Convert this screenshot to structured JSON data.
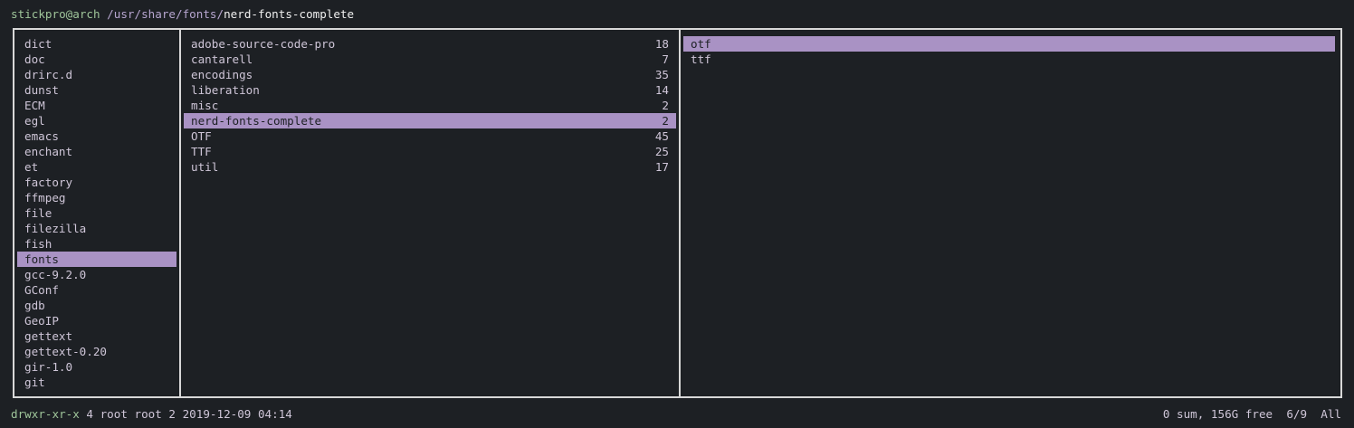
{
  "header": {
    "user": "stickpro@arch",
    "path": "/usr/share/fonts/",
    "current": "nerd-fonts-complete"
  },
  "parent_column": {
    "selected": 14,
    "items": [
      "dict",
      "doc",
      "drirc.d",
      "dunst",
      "ECM",
      "egl",
      "emacs",
      "enchant",
      "et",
      "factory",
      "ffmpeg",
      "file",
      "filezilla",
      "fish",
      "fonts",
      "gcc-9.2.0",
      "GConf",
      "gdb",
      "GeoIP",
      "gettext",
      "gettext-0.20",
      "gir-1.0",
      "git"
    ]
  },
  "current_column": {
    "selected": 5,
    "items": [
      {
        "name": "adobe-source-code-pro",
        "count": 18
      },
      {
        "name": "cantarell",
        "count": 7
      },
      {
        "name": "encodings",
        "count": 35
      },
      {
        "name": "liberation",
        "count": 14
      },
      {
        "name": "misc",
        "count": 2
      },
      {
        "name": "nerd-fonts-complete",
        "count": 2
      },
      {
        "name": "OTF",
        "count": 45
      },
      {
        "name": "TTF",
        "count": 25
      },
      {
        "name": "util",
        "count": 17
      }
    ]
  },
  "preview_column": {
    "selected": 0,
    "items": [
      "otf",
      "ttf"
    ]
  },
  "status": {
    "permissions": "drwxr-xr-x",
    "info": "4 root root 2 2019-12-09 04:14",
    "disk": "0 sum, 156G free",
    "position": "6/9",
    "scroll": "All"
  }
}
